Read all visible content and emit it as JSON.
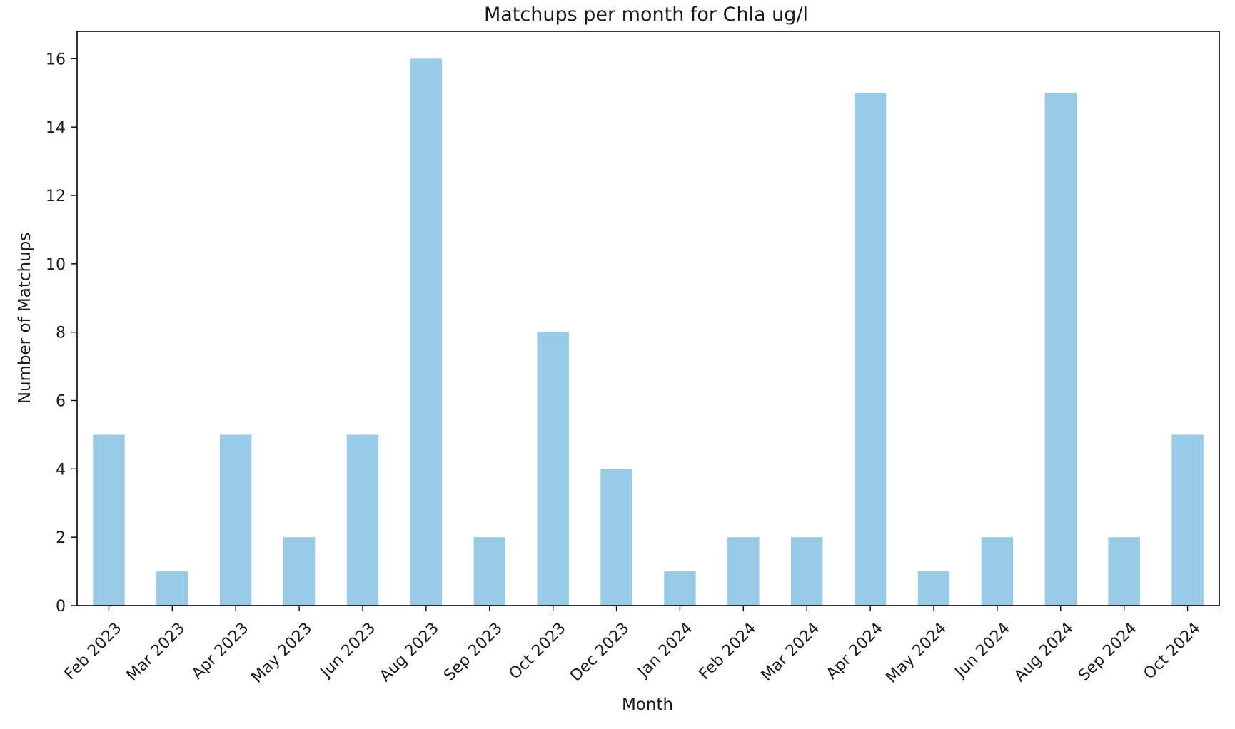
{
  "chart_data": {
    "type": "bar",
    "title": "Matchups per month for Chla ug/l",
    "xlabel": "Month",
    "ylabel": "Number of Matchups",
    "categories": [
      "Feb 2023",
      "Mar 2023",
      "Apr 2023",
      "May 2023",
      "Jun 2023",
      "Aug 2023",
      "Sep 2023",
      "Oct 2023",
      "Dec 2023",
      "Jan 2024",
      "Feb 2024",
      "Mar 2024",
      "Apr 2024",
      "May 2024",
      "Jun 2024",
      "Aug 2024",
      "Sep 2024",
      "Oct 2024"
    ],
    "values": [
      5,
      1,
      5,
      2,
      5,
      16,
      2,
      8,
      4,
      1,
      2,
      2,
      15,
      1,
      2,
      15,
      2,
      5
    ],
    "yticks": [
      0,
      2,
      4,
      6,
      8,
      10,
      12,
      14,
      16
    ],
    "ylim": [
      0,
      16.8
    ],
    "bar_color": "#97cbe8",
    "grid": false,
    "legend": "none"
  }
}
